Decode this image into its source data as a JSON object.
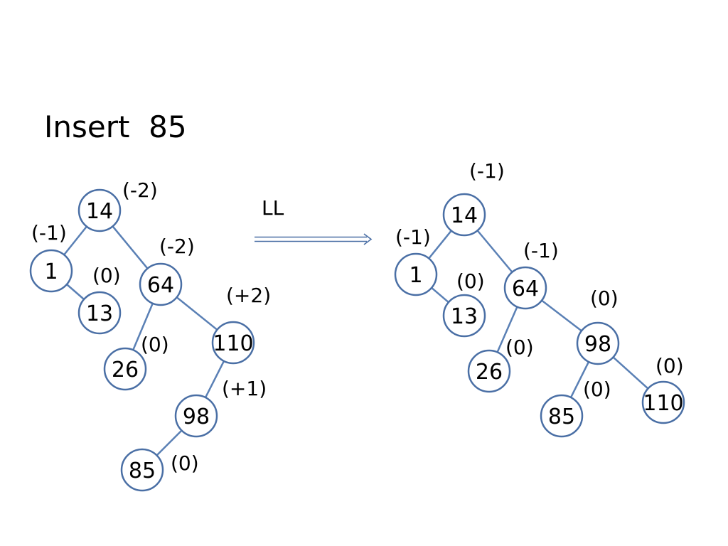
{
  "title": "Insert  85",
  "rotation_label": "LL",
  "before": {
    "nodes": [
      {
        "id": "b14",
        "label": "14",
        "balance": "(-2)"
      },
      {
        "id": "b1",
        "label": "1",
        "balance": "(-1)"
      },
      {
        "id": "b13",
        "label": "13",
        "balance": "(0)"
      },
      {
        "id": "b64",
        "label": "64",
        "balance": "(-2)"
      },
      {
        "id": "b26",
        "label": "26",
        "balance": "(0)"
      },
      {
        "id": "b110",
        "label": "110",
        "balance": "(+2)"
      },
      {
        "id": "b98",
        "label": "98",
        "balance": "(+1)"
      },
      {
        "id": "b85",
        "label": "85",
        "balance": "(0)"
      }
    ],
    "edges": [
      [
        "b14",
        "b1"
      ],
      [
        "b14",
        "b64"
      ],
      [
        "b1",
        "b13"
      ],
      [
        "b64",
        "b26"
      ],
      [
        "b64",
        "b110"
      ],
      [
        "b110",
        "b98"
      ],
      [
        "b98",
        "b85"
      ]
    ]
  },
  "after": {
    "nodes": [
      {
        "id": "a14",
        "label": "14",
        "balance": "(-1)"
      },
      {
        "id": "a1",
        "label": "1",
        "balance": "(-1)"
      },
      {
        "id": "a13",
        "label": "13",
        "balance": "(0)"
      },
      {
        "id": "a64",
        "label": "64",
        "balance": "(-1)"
      },
      {
        "id": "a26",
        "label": "26",
        "balance": "(0)"
      },
      {
        "id": "a98",
        "label": "98",
        "balance": "(0)"
      },
      {
        "id": "a85",
        "label": "85",
        "balance": "(0)"
      },
      {
        "id": "a110",
        "label": "110",
        "balance": "(0)"
      }
    ],
    "edges": [
      [
        "a14",
        "a1"
      ],
      [
        "a14",
        "a64"
      ],
      [
        "a1",
        "a13"
      ],
      [
        "a64",
        "a26"
      ],
      [
        "a64",
        "a98"
      ],
      [
        "a98",
        "a85"
      ],
      [
        "a98",
        "a110"
      ]
    ]
  },
  "colors": {
    "node_stroke": "#4a6fa5",
    "edge": "#5a80b5",
    "text": "#000000"
  }
}
